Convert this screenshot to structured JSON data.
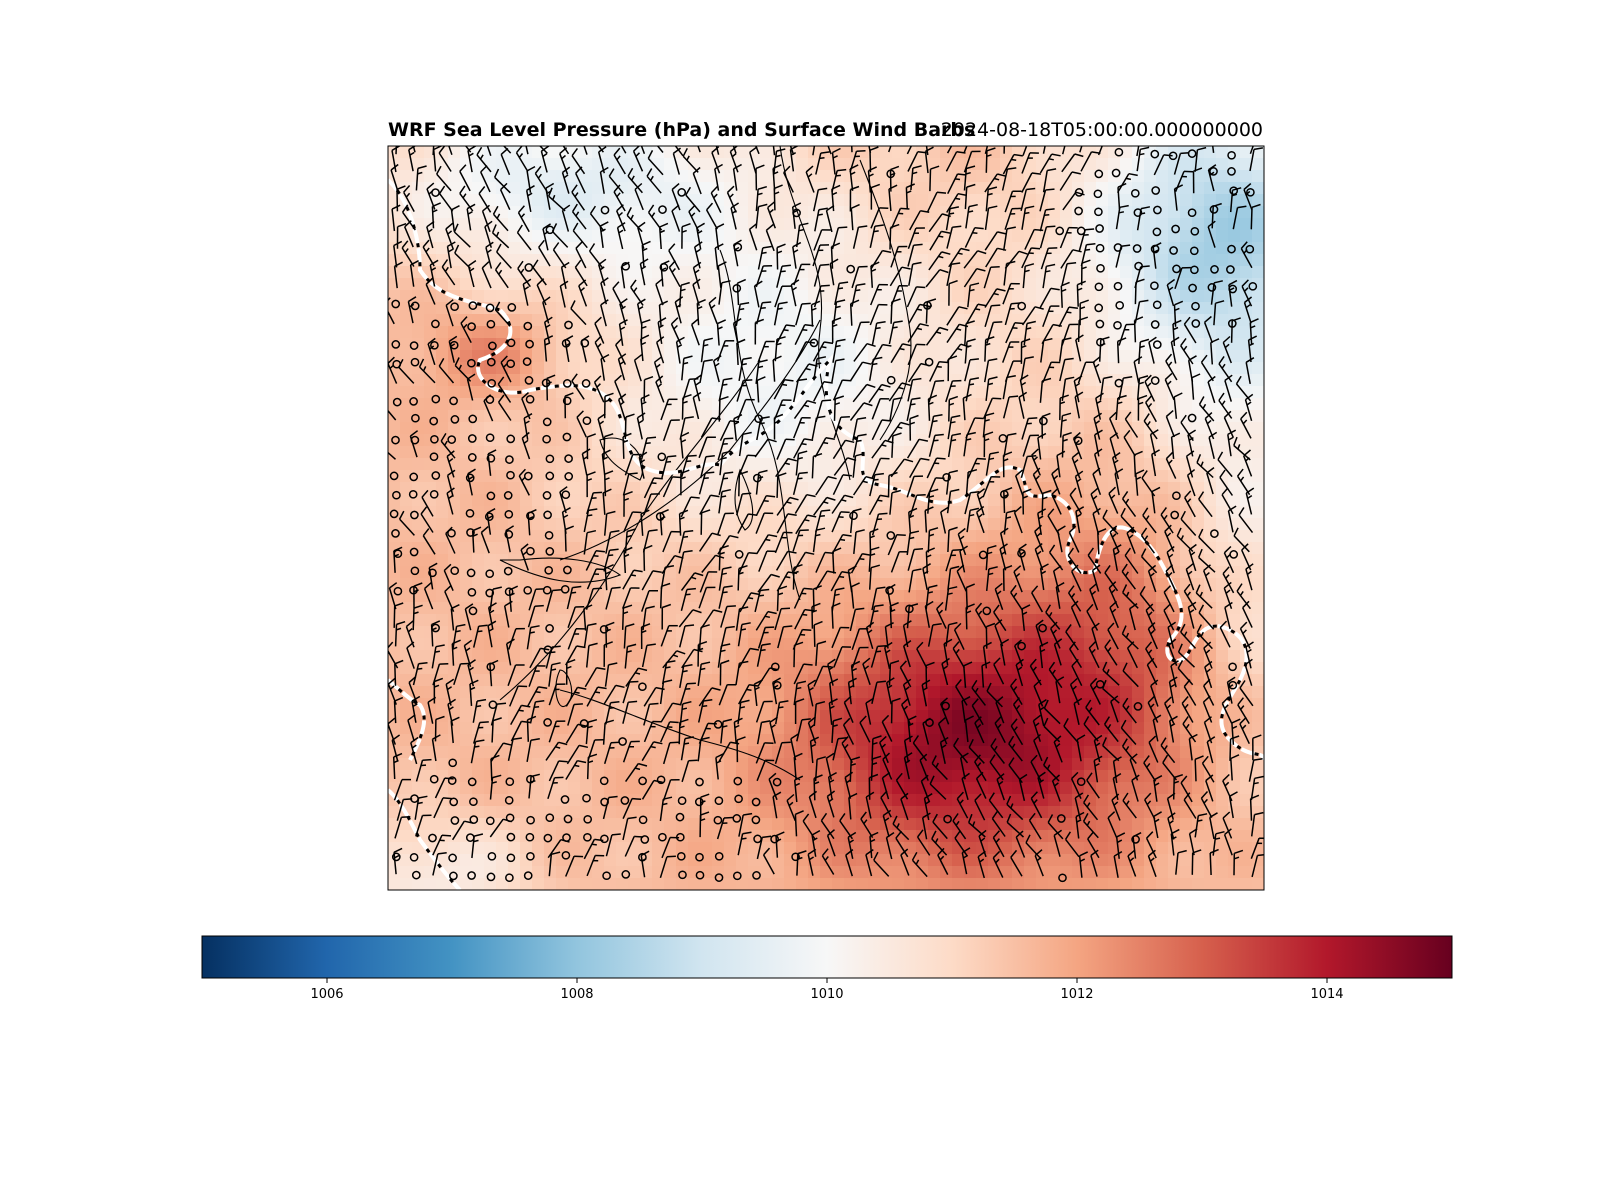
{
  "title": "WRF Sea Level Pressure (hPa) and Surface Wind Barbs",
  "timestamp": "2024-08-18T05:00:00.000000000",
  "colorbar": {
    "colormap": "RdBu_r",
    "min": 1005,
    "max": 1015,
    "ticks": [
      {
        "value": 1006,
        "label": "1006"
      },
      {
        "value": 1008,
        "label": "1008"
      },
      {
        "value": 1010,
        "label": "1010"
      },
      {
        "value": 1012,
        "label": "1012"
      },
      {
        "value": 1014,
        "label": "1014"
      }
    ],
    "colors": {
      "1005": "#053061",
      "1006": "#2166ac",
      "1007": "#4393c3",
      "1008": "#92c5de",
      "1009": "#d1e5f0",
      "1010": "#f7f7f7",
      "1011": "#fddbc7",
      "1012": "#f4a582",
      "1013": "#d6604d",
      "1014": "#b2182b",
      "1015": "#67001f"
    }
  },
  "map": {
    "field": "sea level pressure (hPa)",
    "overlays": [
      "surface wind barbs",
      "coastlines",
      "dashed boundary lines"
    ],
    "barb_color": "#000000",
    "boundary_color": "#ffffff"
  }
}
